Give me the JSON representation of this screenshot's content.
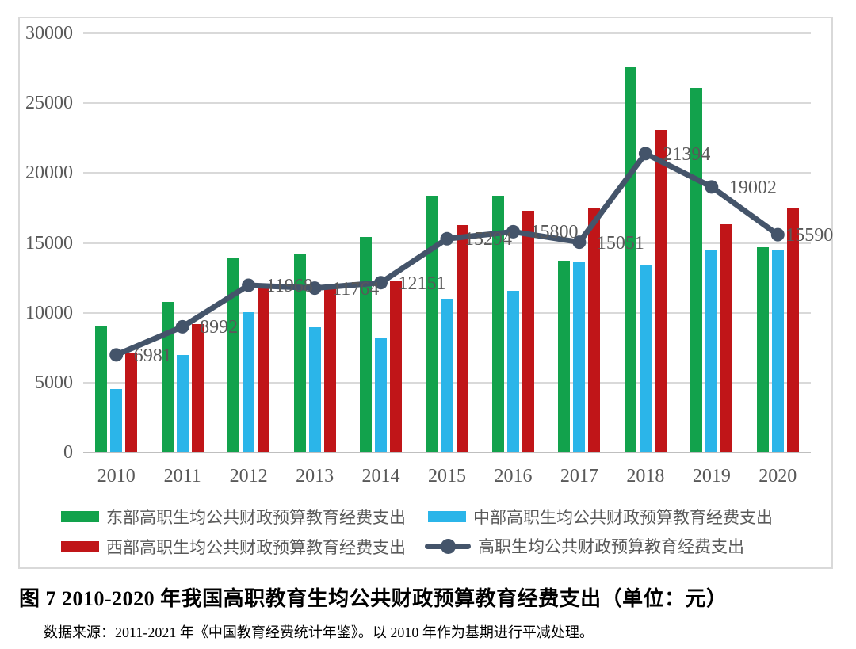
{
  "chart_data": {
    "type": "bar",
    "subtype": "grouped-bars-with-line-overlay",
    "title": "图 7 2010-2020 年我国高职教育生均公共财政预算教育经费支出（单位：元）",
    "source_note": "数据来源：2011-2021 年《中国教育经费统计年鉴》。以 2010 年作为基期进行平减处理。",
    "categories": [
      "2010",
      "2011",
      "2012",
      "2013",
      "2014",
      "2015",
      "2016",
      "2017",
      "2018",
      "2019",
      "2020"
    ],
    "series": [
      {
        "name": "东部高职生均公共财政预算教育经费支出",
        "type": "bar",
        "color": "#12A24C",
        "values": [
          9100,
          10750,
          13950,
          14250,
          15450,
          18400,
          18400,
          13750,
          27600,
          26100,
          14700
        ]
      },
      {
        "name": "中部高职生均公共财政预算教育经费支出",
        "type": "bar",
        "color": "#2BB5E9",
        "values": [
          4550,
          7000,
          10050,
          8950,
          8150,
          11000,
          11550,
          13600,
          13450,
          14500,
          14450
        ]
      },
      {
        "name": "西部高职生均公共财政预算教育经费支出",
        "type": "bar",
        "color": "#C01518",
        "values": [
          7100,
          9200,
          11900,
          11800,
          12300,
          16300,
          17300,
          17550,
          23100,
          16350,
          17550
        ]
      },
      {
        "name": "高职生均公共财政预算教育经费支出",
        "type": "line",
        "color": "#44546A",
        "values": [
          6981,
          8992,
          11968,
          11764,
          12151,
          15294,
          15800,
          15051,
          21394,
          19002,
          15590
        ],
        "data_labels": [
          "6981",
          "8992",
          "11968",
          "11764",
          "12151",
          "15294",
          "15800",
          "15051",
          "21394",
          "19002",
          "15590"
        ]
      }
    ],
    "ylim": [
      0,
      30000
    ],
    "ytick_step": 5000,
    "yticks": [
      "0",
      "5000",
      "10000",
      "15000",
      "20000",
      "25000",
      "30000"
    ],
    "grid": true,
    "legend_position": "bottom",
    "colors": {
      "gridline": "#d9d9d9",
      "axis_line": "#bfbfbf",
      "tick_text": "#595959",
      "label_text": "#595959",
      "border": "#d9d9d9"
    }
  }
}
